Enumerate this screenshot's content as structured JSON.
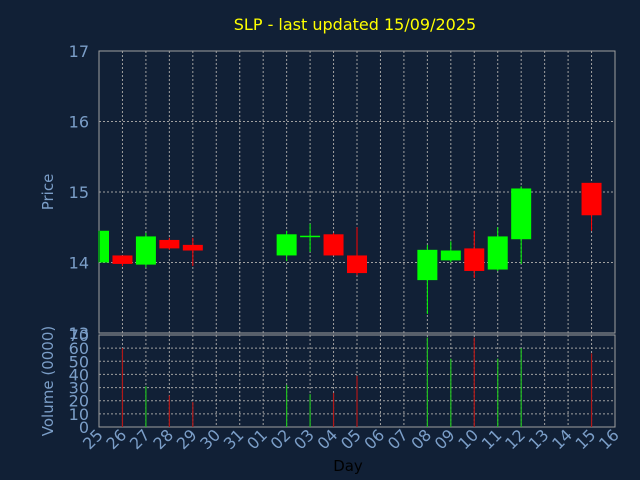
{
  "chart_data": [
    {
      "type": "candlestick",
      "title": "SLP - last updated 15/09/2025",
      "ylabel": "Price",
      "xlabel": "",
      "ylim": [
        13,
        17
      ],
      "yticks": [
        "13",
        "14",
        "15",
        "16",
        "17"
      ],
      "grid": true,
      "candles": [
        {
          "x": "25",
          "open": 14.0,
          "high": 14.45,
          "low": 14.0,
          "close": 14.45
        },
        {
          "x": "26",
          "open": 14.1,
          "high": 14.1,
          "low": 13.95,
          "close": 13.98
        },
        {
          "x": "27",
          "open": 13.97,
          "high": 14.42,
          "low": 13.93,
          "close": 14.37
        },
        {
          "x": "28",
          "open": 14.32,
          "high": 14.35,
          "low": 14.18,
          "close": 14.2
        },
        {
          "x": "29",
          "open": 14.25,
          "high": 14.35,
          "low": 13.95,
          "close": 14.17
        },
        {
          "x": "02",
          "open": 14.1,
          "high": 14.45,
          "low": 14.02,
          "close": 14.4
        },
        {
          "x": "03",
          "open": 14.36,
          "high": 14.55,
          "low": 14.15,
          "close": 14.38
        },
        {
          "x": "04",
          "open": 14.4,
          "high": 14.42,
          "low": 14.1,
          "close": 14.1
        },
        {
          "x": "05",
          "open": 14.1,
          "high": 14.5,
          "low": 13.82,
          "close": 13.85
        },
        {
          "x": "08",
          "open": 13.75,
          "high": 14.25,
          "low": 13.27,
          "close": 14.18
        },
        {
          "x": "09",
          "open": 14.03,
          "high": 14.3,
          "low": 14.0,
          "close": 14.17
        },
        {
          "x": "10",
          "open": 14.2,
          "high": 14.45,
          "low": 13.78,
          "close": 13.88
        },
        {
          "x": "11",
          "open": 13.9,
          "high": 14.5,
          "low": 13.88,
          "close": 14.37
        },
        {
          "x": "12",
          "open": 14.33,
          "high": 15.08,
          "low": 13.98,
          "close": 15.05
        },
        {
          "x": "15",
          "open": 15.13,
          "high": 15.13,
          "low": 14.45,
          "close": 14.67
        }
      ]
    },
    {
      "type": "bar",
      "ylabel": "Volume (0000)",
      "xlabel": "Day",
      "ylim": [
        0,
        70
      ],
      "yticks": [
        "0",
        "10",
        "20",
        "30",
        "40",
        "50",
        "60",
        "70"
      ],
      "categories": [
        "25",
        "26",
        "27",
        "28",
        "29",
        "30",
        "31",
        "01",
        "02",
        "03",
        "04",
        "05",
        "06",
        "07",
        "08",
        "09",
        "10",
        "11",
        "12",
        "13",
        "14",
        "15",
        "16"
      ],
      "volumes": [
        {
          "x": "26",
          "value": 60,
          "direction": "down"
        },
        {
          "x": "27",
          "value": 31,
          "direction": "up"
        },
        {
          "x": "28",
          "value": 24,
          "direction": "down"
        },
        {
          "x": "29",
          "value": 19,
          "direction": "down"
        },
        {
          "x": "02",
          "value": 32,
          "direction": "up"
        },
        {
          "x": "03",
          "value": 25,
          "direction": "up"
        },
        {
          "x": "04",
          "value": 26,
          "direction": "down"
        },
        {
          "x": "05",
          "value": 39,
          "direction": "down"
        },
        {
          "x": "08",
          "value": 68,
          "direction": "up"
        },
        {
          "x": "09",
          "value": 52,
          "direction": "up"
        },
        {
          "x": "10",
          "value": 68,
          "direction": "down"
        },
        {
          "x": "11",
          "value": 52,
          "direction": "up"
        },
        {
          "x": "12",
          "value": 60,
          "direction": "up"
        },
        {
          "x": "15",
          "value": 56,
          "direction": "down"
        }
      ]
    }
  ],
  "colors": {
    "background": "#112036",
    "title": "#ffff00",
    "axis_text": "#7b9ec8",
    "grid": "#a0a0a0",
    "up": "#00ff00",
    "down": "#ff0000",
    "up_volume": "#1fbf1f",
    "down_volume": "#b01818"
  }
}
